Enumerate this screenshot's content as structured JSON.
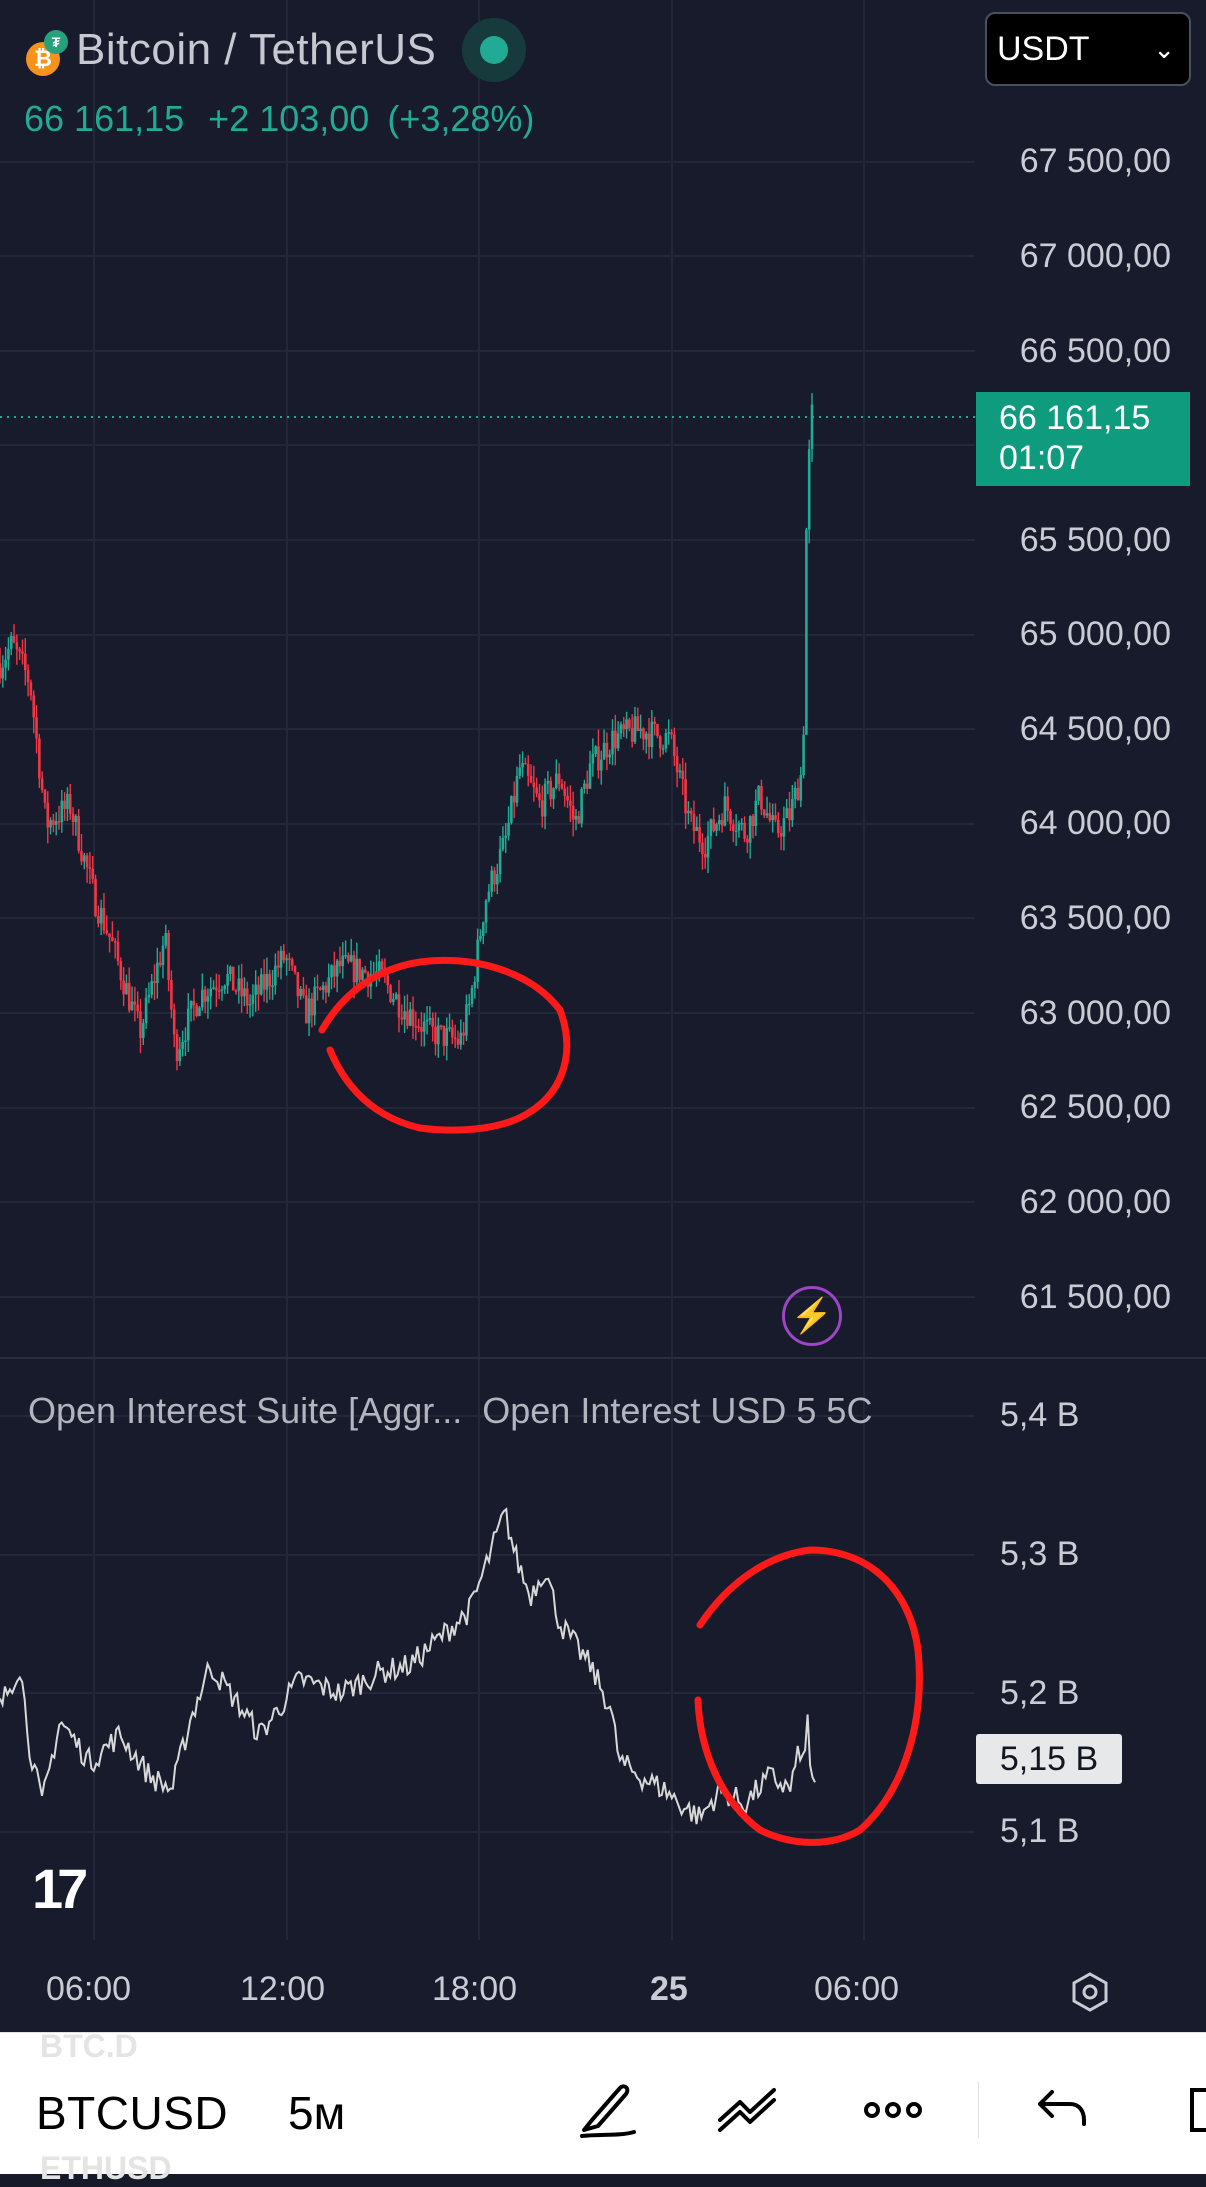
{
  "header": {
    "pair": "Bitcoin / TetherUS",
    "price": "66 161,15",
    "change": "+2 103,00",
    "change_pct": "(+3,28%)",
    "btc_icon_glyph": "₿",
    "usdt_icon_glyph": "₮"
  },
  "currency": {
    "value": "USDT",
    "chevron": "⌄"
  },
  "price_axis": {
    "labels": [
      "67 500,00",
      "67 000,00",
      "66 500,00",
      "65 500,00",
      "65 000,00",
      "64 500,00",
      "64 000,00",
      "63 500,00",
      "63 000,00",
      "62 500,00",
      "62 000,00",
      "61 500,00"
    ],
    "last_price": "66 161,15",
    "countdown": "01:07"
  },
  "indicator": {
    "title": "Open Interest Suite [Aggr...",
    "subtitle": "Open Interest USD 5 5C",
    "axis_labels": [
      "5,4 B",
      "5,3 B",
      "5,2 B",
      "5,1 B"
    ],
    "current": "5,15 B"
  },
  "time_axis": {
    "labels": [
      "06:00",
      "12:00",
      "18:00",
      "25",
      "06:00"
    ]
  },
  "bottom_bar": {
    "ghost_top": "BTC.D",
    "ghost_bottom": "ETHUSD",
    "symbol": "BTCUSD",
    "interval": "5м"
  },
  "colors": {
    "up": "#22ab94",
    "down": "#f23645",
    "background": "#171b2b",
    "annotation": "#ff1a1a"
  },
  "icons": [
    "btc-icon",
    "usdt-icon",
    "live-dot",
    "chevron-down-icon",
    "bolt-icon",
    "tradingview-logo",
    "settings-icon",
    "brush-icon",
    "trend-line-icon",
    "more-icon",
    "undo-icon"
  ]
}
